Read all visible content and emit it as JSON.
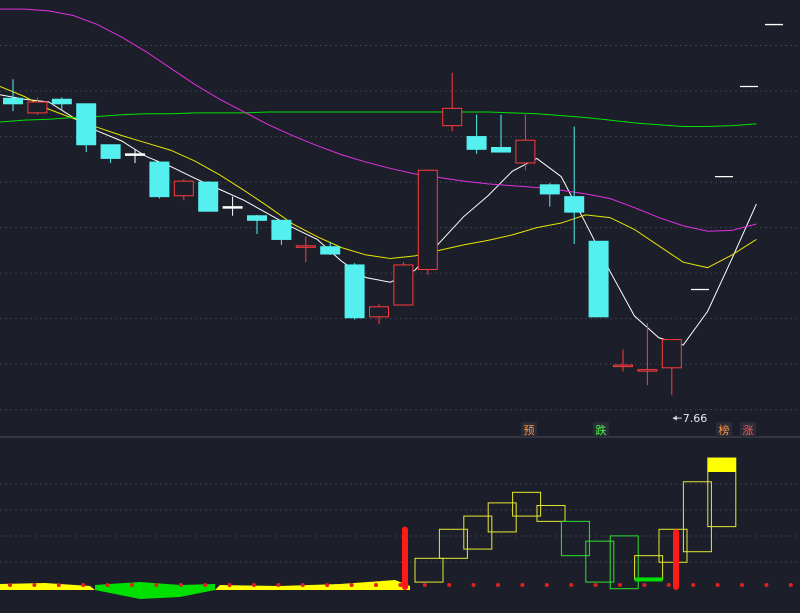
{
  "chart_data": [
    {
      "type": "candlestick",
      "title": "",
      "ylim": [
        7.2,
        12.0
      ],
      "grid": true,
      "candles": [
        {
          "o": 10.92,
          "c": 10.86,
          "h": 11.13,
          "l": 10.78,
          "color": "cyan"
        },
        {
          "o": 10.76,
          "c": 10.88,
          "h": 10.93,
          "l": 10.74,
          "color": "red"
        },
        {
          "o": 10.91,
          "c": 10.86,
          "h": 10.93,
          "l": 10.79,
          "color": "cyan"
        },
        {
          "o": 10.86,
          "c": 10.41,
          "h": 10.86,
          "l": 10.33,
          "color": "cyan"
        },
        {
          "o": 10.41,
          "c": 10.26,
          "h": 10.41,
          "l": 10.21,
          "color": "cyan"
        },
        {
          "o": 10.31,
          "c": 10.3,
          "h": 10.36,
          "l": 10.21,
          "color": "white"
        },
        {
          "o": 10.22,
          "c": 9.84,
          "h": 10.22,
          "l": 9.82,
          "color": "cyan"
        },
        {
          "o": 9.85,
          "c": 10.01,
          "h": 10.03,
          "l": 9.8,
          "color": "red"
        },
        {
          "o": 10.0,
          "c": 9.68,
          "h": 10.01,
          "l": 9.68,
          "color": "cyan"
        },
        {
          "o": 9.73,
          "c": 9.72,
          "h": 9.84,
          "l": 9.63,
          "color": "white"
        },
        {
          "o": 9.63,
          "c": 9.58,
          "h": 9.64,
          "l": 9.43,
          "color": "cyan"
        },
        {
          "o": 9.58,
          "c": 9.37,
          "h": 9.58,
          "l": 9.31,
          "color": "cyan"
        },
        {
          "o": 9.3,
          "c": 9.29,
          "h": 9.4,
          "l": 9.12,
          "color": "red"
        },
        {
          "o": 9.29,
          "c": 9.21,
          "h": 9.34,
          "l": 9.2,
          "color": "cyan"
        },
        {
          "o": 9.09,
          "c": 8.51,
          "h": 9.11,
          "l": 8.49,
          "color": "cyan"
        },
        {
          "o": 8.52,
          "c": 8.63,
          "h": 8.66,
          "l": 8.44,
          "color": "red"
        },
        {
          "o": 8.65,
          "c": 9.09,
          "h": 9.12,
          "l": 8.65,
          "color": "red"
        },
        {
          "o": 9.04,
          "c": 10.13,
          "h": 10.13,
          "l": 8.98,
          "color": "red"
        },
        {
          "o": 10.62,
          "c": 10.81,
          "h": 11.2,
          "l": 10.56,
          "color": "red"
        },
        {
          "o": 10.5,
          "c": 10.36,
          "h": 10.74,
          "l": 10.31,
          "color": "cyan"
        },
        {
          "o": 10.38,
          "c": 10.33,
          "h": 10.74,
          "l": 10.33,
          "color": "cyan"
        },
        {
          "o": 10.21,
          "c": 10.46,
          "h": 10.74,
          "l": 10.13,
          "color": "red"
        },
        {
          "o": 9.97,
          "c": 9.87,
          "h": 9.99,
          "l": 9.73,
          "color": "cyan"
        },
        {
          "o": 9.84,
          "c": 9.67,
          "h": 10.61,
          "l": 9.32,
          "color": "cyan"
        },
        {
          "o": 9.35,
          "c": 8.52,
          "h": 9.35,
          "l": 8.52,
          "color": "cyan"
        },
        {
          "o": 7.98,
          "c": 7.99,
          "h": 8.16,
          "l": 7.92,
          "color": "red"
        },
        {
          "o": 7.93,
          "c": 7.94,
          "h": 8.45,
          "l": 7.77,
          "color": "red"
        },
        {
          "o": 7.96,
          "c": 8.27,
          "h": 8.27,
          "l": 7.66,
          "color": "red"
        }
      ],
      "ma_series": [
        {
          "color": "#ffffff",
          "values": [
            10.96,
            10.91,
            10.88,
            10.71,
            10.56,
            10.45,
            10.28,
            10.17,
            10.04,
            9.92,
            9.8,
            9.65,
            9.5,
            9.37,
            9.13,
            8.95,
            8.9,
            9.03,
            9.33,
            9.62,
            9.85,
            10.12,
            10.26,
            10.06,
            9.55,
            9.02,
            8.53,
            8.29,
            8.21,
            8.58,
            9.16,
            9.76
          ]
        },
        {
          "color": "#e6e600",
          "values": [
            11.05,
            10.94,
            10.8,
            10.7,
            10.6,
            10.51,
            10.43,
            10.35,
            10.23,
            10.08,
            9.91,
            9.73,
            9.54,
            9.4,
            9.28,
            9.2,
            9.16,
            9.19,
            9.25,
            9.31,
            9.36,
            9.42,
            9.5,
            9.55,
            9.64,
            9.61,
            9.48,
            9.3,
            9.12,
            9.06,
            9.2,
            9.37
          ]
        },
        {
          "color": "#00e000",
          "values": [
            10.66,
            10.68,
            10.69,
            10.71,
            10.72,
            10.74,
            10.75,
            10.75,
            10.76,
            10.76,
            10.76,
            10.77,
            10.77,
            10.77,
            10.77,
            10.77,
            10.77,
            10.77,
            10.77,
            10.77,
            10.77,
            10.76,
            10.75,
            10.73,
            10.71,
            10.68,
            10.65,
            10.63,
            10.61,
            10.61,
            10.62,
            10.64
          ]
        },
        {
          "color": "#e030e0",
          "values": [
            11.9,
            11.9,
            11.88,
            11.83,
            11.73,
            11.59,
            11.43,
            11.25,
            11.07,
            10.91,
            10.77,
            10.63,
            10.51,
            10.4,
            10.3,
            10.22,
            10.15,
            10.09,
            10.05,
            10.01,
            9.98,
            9.96,
            9.94,
            9.91,
            9.87,
            9.82,
            9.72,
            9.61,
            9.52,
            9.46,
            9.47,
            9.54
          ]
        }
      ],
      "right_markers": [
        11.73,
        11.05,
        10.06,
        8.82
      ],
      "annotation": {
        "text": "7.66"
      },
      "badges": [
        {
          "text": "预",
          "color": "#ff9040"
        },
        {
          "text": "跌",
          "color": "#40ff40"
        },
        {
          "text": "榜",
          "color": "#ff9040"
        },
        {
          "text": "涨",
          "color": "#ff5050"
        }
      ]
    },
    {
      "type": "candlestick-indicator",
      "title": "",
      "ylim": [
        0,
        100
      ],
      "boxes": [
        {
          "o": 6,
          "c": 24,
          "color": "yellow"
        },
        {
          "o": 24,
          "c": 46,
          "color": "yellow"
        },
        {
          "o": 31,
          "c": 56,
          "color": "yellow"
        },
        {
          "o": 44,
          "c": 66,
          "color": "yellow"
        },
        {
          "o": 56,
          "c": 74,
          "color": "yellow"
        },
        {
          "o": 64,
          "c": 52,
          "color": "yellow"
        },
        {
          "o": 52,
          "c": 26,
          "color": "green"
        },
        {
          "o": 37,
          "c": 6,
          "color": "green"
        },
        {
          "o": 41,
          "c": 1,
          "color": "green"
        },
        {
          "o": 8,
          "c": 26,
          "color": "yellow"
        },
        {
          "o": 21,
          "c": 46,
          "color": "yellow"
        },
        {
          "o": 29,
          "c": 82,
          "color": "yellow"
        },
        {
          "o": 48,
          "c": 100,
          "color": "yellow"
        }
      ],
      "red_bars": [
        {
          "from": 0,
          "to": 48
        },
        {
          "from": 0,
          "to": 46
        }
      ],
      "band_colors": {
        "yellow": "#ffff00",
        "green": "#00e000"
      }
    }
  ]
}
